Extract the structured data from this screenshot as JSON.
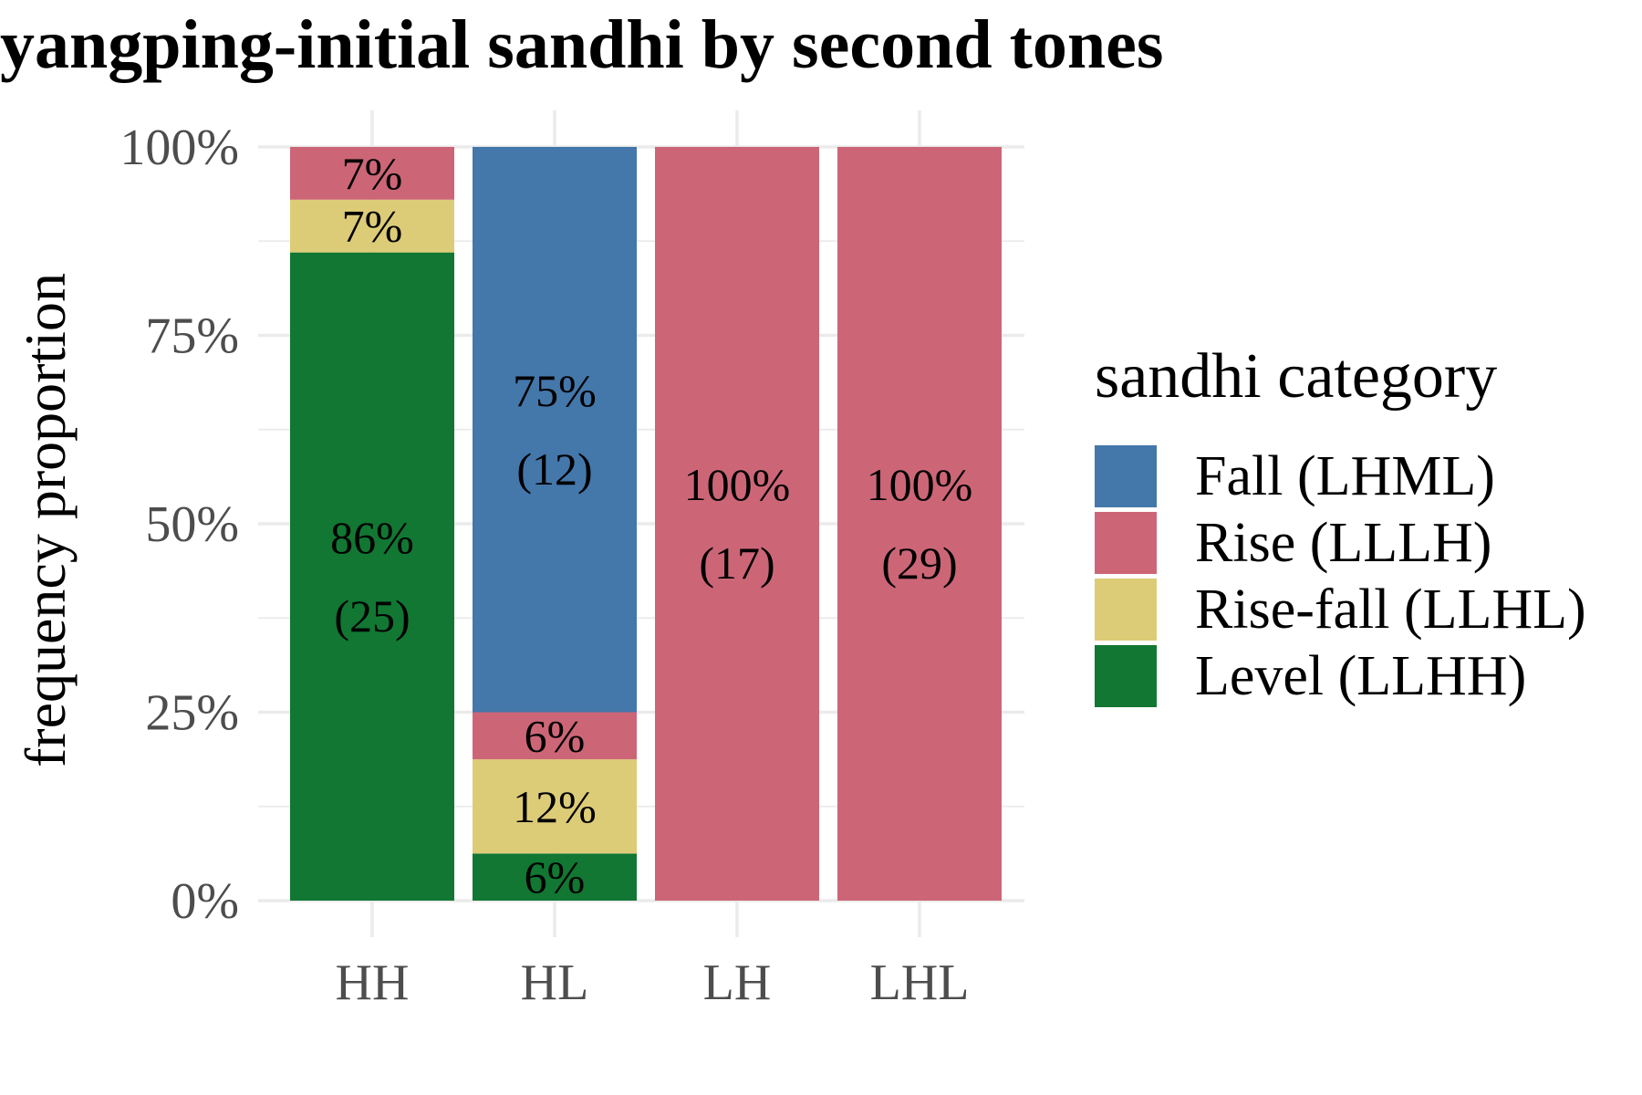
{
  "chart_data": {
    "type": "bar",
    "stacked": true,
    "title": "yangping-initial sandhi by second tones",
    "xlabel": "",
    "ylabel": "frequency proportion",
    "categories": [
      "HH",
      "HL",
      "LH",
      "LHL"
    ],
    "ylim": [
      0,
      1
    ],
    "yticks": [
      0,
      0.25,
      0.5,
      0.75,
      1
    ],
    "ytick_labels": [
      "0%",
      "25%",
      "50%",
      "75%",
      "100%"
    ],
    "grid": true,
    "legend": {
      "title": "sandhi category",
      "position": "right",
      "entries": [
        "Fall (LHML)",
        "Rise (LLLH)",
        "Rise-fall (LLHL)",
        "Level (LLHH)"
      ]
    },
    "stack_order": [
      "Level (LLHH)",
      "Rise-fall (LLHL)",
      "Rise (LLLH)",
      "Fall (LHML)"
    ],
    "series": [
      {
        "name": "Fall (LHML)",
        "color": "#4477aa",
        "values": [
          0,
          0.75,
          0,
          0
        ],
        "labels": [
          "",
          "75%",
          "",
          ""
        ],
        "counts": [
          "",
          "(12)",
          "",
          ""
        ]
      },
      {
        "name": "Rise (LLLH)",
        "color": "#cc6677",
        "values": [
          0.07,
          0.0625,
          1,
          1
        ],
        "labels": [
          "7%",
          "6%",
          "100%",
          "100%"
        ],
        "counts": [
          "",
          "",
          "(17)",
          "(29)"
        ]
      },
      {
        "name": "Rise-fall (LLHL)",
        "color": "#ddcc77",
        "values": [
          0.07,
          0.125,
          0,
          0
        ],
        "labels": [
          "7%",
          "12%",
          "",
          ""
        ],
        "counts": [
          "",
          "",
          "",
          ""
        ]
      },
      {
        "name": "Level (LLHH)",
        "color": "#117733",
        "values": [
          0.86,
          0.0625,
          0,
          0
        ],
        "labels": [
          "86%",
          "6%",
          "",
          ""
        ],
        "counts": [
          "(25)",
          "",
          "",
          ""
        ]
      }
    ]
  }
}
